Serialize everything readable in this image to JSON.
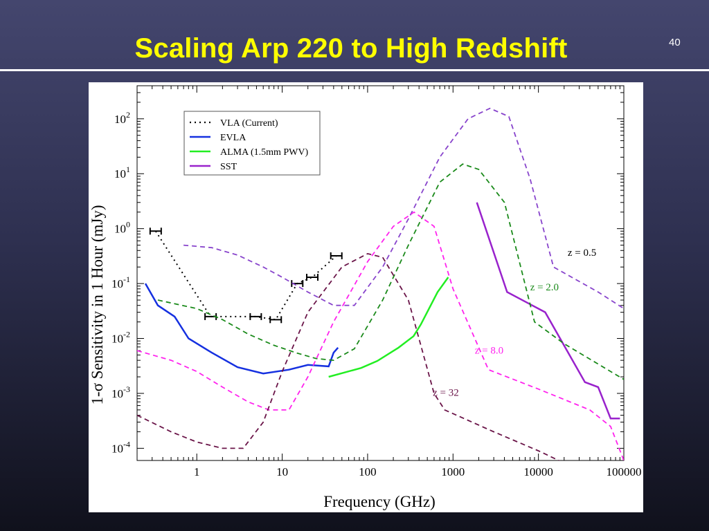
{
  "slide": {
    "title": "Scaling Arp 220 to High Redshift",
    "page_number": "40",
    "colors": {
      "background": "#2e3050",
      "title": "#ffff00",
      "rule": "#ffffff"
    }
  },
  "chart_data": {
    "type": "line",
    "x_scale": "log",
    "y_scale": "log",
    "xlabel": "Frequency (GHz)",
    "ylabel": "1-σ Sensitivity in 1 Hour (mJy)",
    "xlim": [
      0.2,
      100000
    ],
    "ylim": [
      6e-05,
      400
    ],
    "x_ticks": [
      {
        "value": 1,
        "label": "1"
      },
      {
        "value": 10,
        "label": "10"
      },
      {
        "value": 100,
        "label": "100"
      },
      {
        "value": 1000,
        "label": "1000"
      },
      {
        "value": 10000,
        "label": "10000"
      },
      {
        "value": 100000,
        "label": "100000"
      }
    ],
    "y_ticks": [
      {
        "value": 0.0001,
        "base": "10",
        "exp": "-4"
      },
      {
        "value": 0.001,
        "base": "10",
        "exp": "-3"
      },
      {
        "value": 0.01,
        "base": "10",
        "exp": "-2"
      },
      {
        "value": 0.1,
        "base": "10",
        "exp": "-1"
      },
      {
        "value": 1,
        "base": "10",
        "exp": "0"
      },
      {
        "value": 10,
        "base": "10",
        "exp": "1"
      },
      {
        "value": 100,
        "base": "10",
        "exp": "2"
      }
    ],
    "grid": false,
    "legend": {
      "position": "top-left",
      "entries": [
        {
          "label": "VLA (Current)",
          "color": "#000000",
          "style": "dotted"
        },
        {
          "label": "EVLA",
          "color": "#1530e0",
          "style": "solid"
        },
        {
          "label": "ALMA (1.5mm PWV)",
          "color": "#22ee22",
          "style": "solid"
        },
        {
          "label": "SST",
          "color": "#9922cc",
          "style": "solid"
        }
      ]
    },
    "series": [
      {
        "name": "VLA (Current)",
        "color": "#000000",
        "style": "dotted",
        "points": [
          [
            0.33,
            0.9
          ],
          [
            1.45,
            0.025
          ],
          [
            4.9,
            0.025
          ],
          [
            8.4,
            0.022
          ],
          [
            15,
            0.1
          ],
          [
            22.5,
            0.13
          ],
          [
            43,
            0.32
          ]
        ],
        "error_bars": [
          [
            0.33,
            0.9
          ],
          [
            1.45,
            0.025
          ],
          [
            4.9,
            0.025
          ],
          [
            8.4,
            0.022
          ],
          [
            15,
            0.1
          ],
          [
            22.5,
            0.13
          ],
          [
            43,
            0.32
          ]
        ]
      },
      {
        "name": "EVLA",
        "color": "#1530e0",
        "style": "solid",
        "points": [
          [
            0.25,
            0.1
          ],
          [
            0.35,
            0.04
          ],
          [
            0.55,
            0.025
          ],
          [
            0.8,
            0.01
          ],
          [
            1.5,
            0.0055
          ],
          [
            3,
            0.003
          ],
          [
            6,
            0.0023
          ],
          [
            12,
            0.0027
          ],
          [
            20,
            0.0033
          ],
          [
            35,
            0.0031
          ],
          [
            40,
            0.0055
          ],
          [
            45,
            0.0068
          ]
        ]
      },
      {
        "name": "ALMA (1.5mm PWV)",
        "color": "#22ee22",
        "style": "solid",
        "points": [
          [
            35,
            0.002
          ],
          [
            84,
            0.0029
          ],
          [
            130,
            0.0039
          ],
          [
            230,
            0.0068
          ],
          [
            345,
            0.011
          ],
          [
            420,
            0.018
          ],
          [
            660,
            0.07
          ],
          [
            880,
            0.13
          ]
        ]
      },
      {
        "name": "SST",
        "color": "#9922cc",
        "style": "solid",
        "points": [
          [
            1900,
            3.0
          ],
          [
            4300,
            0.07
          ],
          [
            12000,
            0.03
          ],
          [
            35000,
            0.0016
          ],
          [
            50000,
            0.0013
          ],
          [
            70000,
            0.00035
          ],
          [
            90000,
            0.00035
          ]
        ]
      },
      {
        "name": "z = 0.5",
        "color": "#8844cc",
        "style": "dashed",
        "points": [
          [
            0.7,
            0.5
          ],
          [
            1.5,
            0.45
          ],
          [
            3,
            0.33
          ],
          [
            6,
            0.2
          ],
          [
            10,
            0.13
          ],
          [
            20,
            0.07
          ],
          [
            40,
            0.04
          ],
          [
            70,
            0.04
          ],
          [
            150,
            0.2
          ],
          [
            300,
            1.5
          ],
          [
            700,
            20
          ],
          [
            1500,
            100
          ],
          [
            2700,
            155
          ],
          [
            4500,
            110
          ],
          [
            8000,
            8
          ],
          [
            15000,
            0.2
          ],
          [
            50000,
            0.07
          ],
          [
            100000,
            0.035
          ]
        ],
        "annotation": {
          "text": "z = 0.5",
          "x": 22000,
          "y": 0.32,
          "color": "#000000"
        }
      },
      {
        "name": "z = 2.0",
        "color": "#1a8a1a",
        "style": "dashed",
        "points": [
          [
            0.35,
            0.05
          ],
          [
            1,
            0.035
          ],
          [
            2,
            0.022
          ],
          [
            4,
            0.012
          ],
          [
            8,
            0.0075
          ],
          [
            15,
            0.0054
          ],
          [
            25,
            0.0043
          ],
          [
            40,
            0.004
          ],
          [
            70,
            0.0065
          ],
          [
            150,
            0.05
          ],
          [
            300,
            0.5
          ],
          [
            700,
            7
          ],
          [
            1300,
            15
          ],
          [
            2000,
            12
          ],
          [
            4000,
            3
          ],
          [
            9000,
            0.02
          ],
          [
            20000,
            0.008
          ],
          [
            100000,
            0.0018
          ]
        ],
        "annotation": {
          "text": "z = 2.0",
          "x": 8000,
          "y": 0.075,
          "color": "#1a8a1a"
        }
      },
      {
        "name": "z = 8.0",
        "color": "#ff22ee",
        "style": "dashed",
        "points": [
          [
            0.2,
            0.006
          ],
          [
            0.5,
            0.004
          ],
          [
            1,
            0.0025
          ],
          [
            2,
            0.0013
          ],
          [
            4,
            0.0007
          ],
          [
            7,
            0.0005
          ],
          [
            12,
            0.0005
          ],
          [
            20,
            0.002
          ],
          [
            40,
            0.02
          ],
          [
            100,
            0.25
          ],
          [
            200,
            1.1
          ],
          [
            350,
            2
          ],
          [
            600,
            1.1
          ],
          [
            1000,
            0.08
          ],
          [
            2600,
            0.0027
          ],
          [
            10000,
            0.0012
          ],
          [
            40000,
            0.0005
          ],
          [
            70000,
            0.00025
          ],
          [
            100000,
            6e-05
          ]
        ],
        "annotation": {
          "text": "z = 8.0",
          "x": 1800,
          "y": 0.0053,
          "color": "#ff22ee"
        }
      },
      {
        "name": "z = 32",
        "color": "#6a1448",
        "style": "dashed",
        "points": [
          [
            0.2,
            0.0004
          ],
          [
            0.5,
            0.0002
          ],
          [
            1,
            0.00013
          ],
          [
            2,
            0.0001
          ],
          [
            3.5,
            0.0001
          ],
          [
            6,
            0.0003
          ],
          [
            10,
            0.0025
          ],
          [
            20,
            0.03
          ],
          [
            50,
            0.2
          ],
          [
            100,
            0.35
          ],
          [
            150,
            0.3
          ],
          [
            300,
            0.05
          ],
          [
            600,
            0.001
          ],
          [
            800,
            0.0005
          ],
          [
            3000,
            0.0002
          ],
          [
            10000,
            9e-05
          ],
          [
            30000,
            4e-05
          ]
        ],
        "annotation": {
          "text": "z = 32",
          "x": 580,
          "y": 0.0009,
          "color": "#6a1448"
        }
      }
    ]
  }
}
